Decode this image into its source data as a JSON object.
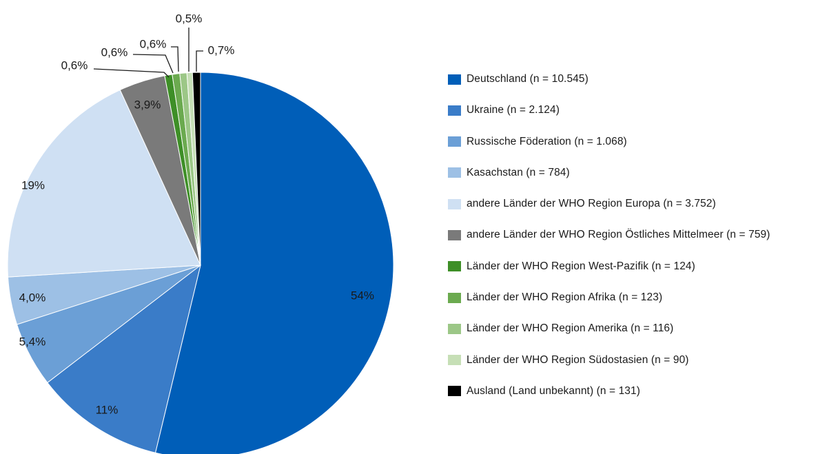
{
  "chart_data": {
    "type": "pie",
    "title": "",
    "start_angle_deg": 0,
    "direction": "clockwise",
    "legend_position": "right",
    "slices": [
      {
        "label": "Deutschland (n = 10.545)",
        "value": 10545,
        "pct_label": "54%",
        "color": "#005EB8"
      },
      {
        "label": "Ukraine (n = 2.124)",
        "value": 2124,
        "pct_label": "11%",
        "color": "#3A7CC8"
      },
      {
        "label": "Russische Föderation (n = 1.068)",
        "value": 1068,
        "pct_label": "5,4%",
        "color": "#6B9FD6"
      },
      {
        "label": "Kasachstan (n = 784)",
        "value": 784,
        "pct_label": "4,0%",
        "color": "#9DC0E5"
      },
      {
        "label": "andere Länder der WHO Region Europa (n = 3.752)",
        "value": 3752,
        "pct_label": "19%",
        "color": "#CFE0F3"
      },
      {
        "label": "andere Länder der WHO Region Östliches Mittelmeer (n = 759)",
        "value": 759,
        "pct_label": "3,9%",
        "color": "#7A7A7A"
      },
      {
        "label": "Länder der WHO Region West-Pazifik (n = 124)",
        "value": 124,
        "pct_label": "0,6%",
        "color": "#3E8F27"
      },
      {
        "label": "Länder der WHO Region Afrika (n = 123)",
        "value": 123,
        "pct_label": "0,6%",
        "color": "#6BAA4F"
      },
      {
        "label": "Länder der WHO Region Amerika (n = 116)",
        "value": 116,
        "pct_label": "0,6%",
        "color": "#9CC787"
      },
      {
        "label": "Länder der WHO Region Südostasien (n = 90)",
        "value": 90,
        "pct_label": "0,5%",
        "color": "#C6DFB6"
      },
      {
        "label": "Ausland (Land unbekannt) (n = 131)",
        "value": 131,
        "pct_label": "0,7%",
        "color": "#000000"
      }
    ]
  }
}
